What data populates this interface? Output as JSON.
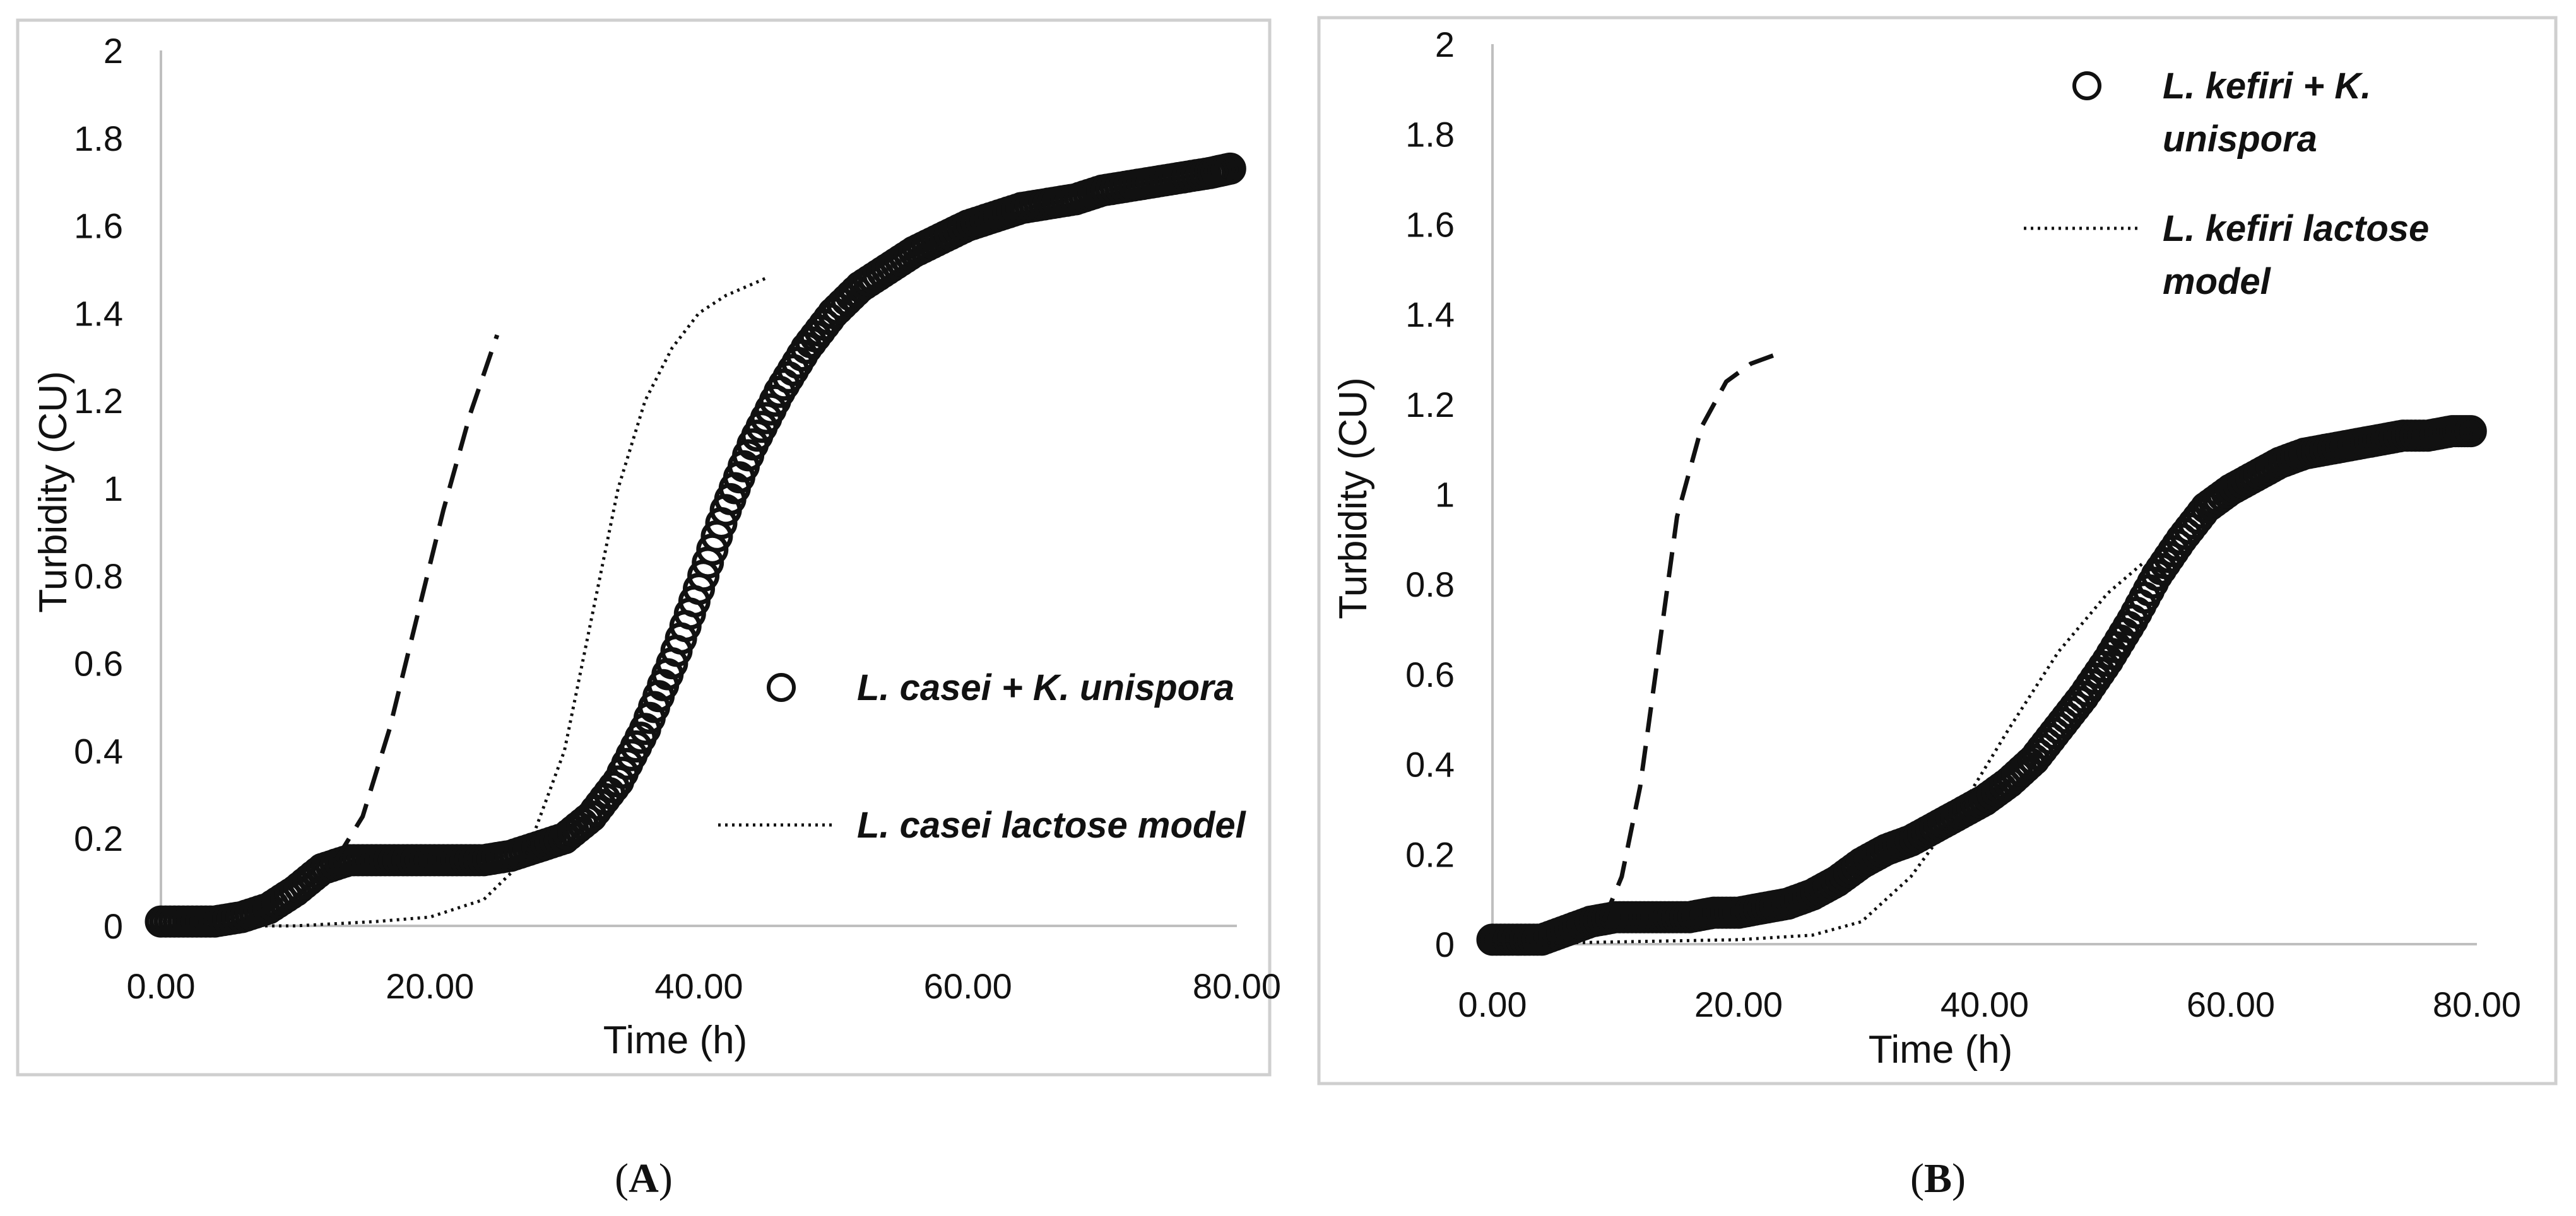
{
  "chart_data": [
    {
      "panel": "A",
      "caption_letter": "A",
      "type": "scatter",
      "xlabel": "Time (h)",
      "ylabel": "Turbidity (CU)",
      "xlim": [
        0,
        80
      ],
      "ylim": [
        0,
        2
      ],
      "x_ticks": [
        "0.00",
        "20.00",
        "40.00",
        "60.00",
        "80.00"
      ],
      "y_ticks": [
        "0",
        "0.2",
        "0.4",
        "0.6",
        "0.8",
        "1",
        "1.2",
        "1.4",
        "1.6",
        "1.8",
        "2"
      ],
      "legend": {
        "placement": "right-middle",
        "items": [
          {
            "label": "L. casei + K. unispora",
            "marker": "circle"
          },
          {
            "label": "L. casei lactose model",
            "marker": "dotted-line"
          }
        ]
      },
      "series": [
        {
          "name": "L. casei + K. unispora",
          "kind": "markers",
          "points": [
            [
              0,
              0.01
            ],
            [
              2,
              0.01
            ],
            [
              4,
              0.01
            ],
            [
              6,
              0.02
            ],
            [
              8,
              0.04
            ],
            [
              10,
              0.08
            ],
            [
              12,
              0.13
            ],
            [
              14,
              0.15
            ],
            [
              16,
              0.15
            ],
            [
              18,
              0.15
            ],
            [
              20,
              0.15
            ],
            [
              22,
              0.15
            ],
            [
              24,
              0.15
            ],
            [
              26,
              0.16
            ],
            [
              28,
              0.18
            ],
            [
              30,
              0.2
            ],
            [
              32,
              0.25
            ],
            [
              34,
              0.33
            ],
            [
              36,
              0.45
            ],
            [
              38,
              0.6
            ],
            [
              40,
              0.77
            ],
            [
              42,
              0.95
            ],
            [
              44,
              1.1
            ],
            [
              46,
              1.22
            ],
            [
              48,
              1.32
            ],
            [
              50,
              1.4
            ],
            [
              52,
              1.46
            ],
            [
              54,
              1.5
            ],
            [
              56,
              1.54
            ],
            [
              58,
              1.57
            ],
            [
              60,
              1.6
            ],
            [
              62,
              1.62
            ],
            [
              64,
              1.64
            ],
            [
              66,
              1.65
            ],
            [
              68,
              1.66
            ],
            [
              70,
              1.68
            ],
            [
              72,
              1.69
            ],
            [
              74,
              1.7
            ],
            [
              76,
              1.71
            ],
            [
              78,
              1.72
            ],
            [
              79.5,
              1.73
            ]
          ]
        },
        {
          "name": "L. casei lactose model",
          "kind": "dotted",
          "points": [
            [
              0,
              0
            ],
            [
              10,
              0
            ],
            [
              16,
              0.01
            ],
            [
              20,
              0.02
            ],
            [
              24,
              0.06
            ],
            [
              27,
              0.15
            ],
            [
              30,
              0.4
            ],
            [
              32,
              0.7
            ],
            [
              34,
              1.0
            ],
            [
              36,
              1.2
            ],
            [
              38,
              1.32
            ],
            [
              40,
              1.4
            ],
            [
              42,
              1.44
            ],
            [
              45,
              1.48
            ]
          ]
        },
        {
          "name": "dashed model (unlabeled)",
          "kind": "dashed",
          "points": [
            [
              13,
              0.15
            ],
            [
              15,
              0.25
            ],
            [
              17,
              0.45
            ],
            [
              19,
              0.7
            ],
            [
              21,
              0.95
            ],
            [
              23,
              1.17
            ],
            [
              25,
              1.35
            ]
          ]
        }
      ]
    },
    {
      "panel": "B",
      "caption_letter": "B",
      "type": "scatter",
      "xlabel": "Time (h)",
      "ylabel": "Turbidity (CU)",
      "xlim": [
        0,
        80
      ],
      "ylim": [
        0,
        2
      ],
      "x_ticks": [
        "0.00",
        "20.00",
        "40.00",
        "60.00",
        "80.00"
      ],
      "y_ticks": [
        "0",
        "0.2",
        "0.4",
        "0.6",
        "0.8",
        "1",
        "1.2",
        "1.4",
        "1.6",
        "1.8",
        "2"
      ],
      "legend": {
        "placement": "top-right",
        "items": [
          {
            "label_lines": [
              "L. kefiri + K.",
              "unispora"
            ],
            "marker": "circle"
          },
          {
            "label_lines": [
              "L. kefiri lactose",
              "model"
            ],
            "marker": "dotted-line"
          }
        ]
      },
      "series": [
        {
          "name": "L. kefiri + K. unispora",
          "kind": "markers",
          "points": [
            [
              0,
              0.01
            ],
            [
              2,
              0.01
            ],
            [
              4,
              0.01
            ],
            [
              6,
              0.03
            ],
            [
              8,
              0.05
            ],
            [
              10,
              0.06
            ],
            [
              12,
              0.06
            ],
            [
              14,
              0.06
            ],
            [
              16,
              0.06
            ],
            [
              18,
              0.07
            ],
            [
              20,
              0.07
            ],
            [
              22,
              0.08
            ],
            [
              24,
              0.09
            ],
            [
              26,
              0.11
            ],
            [
              28,
              0.14
            ],
            [
              30,
              0.18
            ],
            [
              32,
              0.21
            ],
            [
              34,
              0.23
            ],
            [
              36,
              0.26
            ],
            [
              38,
              0.29
            ],
            [
              40,
              0.32
            ],
            [
              42,
              0.36
            ],
            [
              44,
              0.41
            ],
            [
              46,
              0.48
            ],
            [
              48,
              0.55
            ],
            [
              50,
              0.63
            ],
            [
              52,
              0.72
            ],
            [
              54,
              0.82
            ],
            [
              56,
              0.9
            ],
            [
              58,
              0.97
            ],
            [
              60,
              1.01
            ],
            [
              62,
              1.04
            ],
            [
              64,
              1.07
            ],
            [
              66,
              1.09
            ],
            [
              68,
              1.1
            ],
            [
              70,
              1.11
            ],
            [
              72,
              1.12
            ],
            [
              74,
              1.13
            ],
            [
              76,
              1.13
            ],
            [
              78,
              1.14
            ],
            [
              79.5,
              1.14
            ]
          ]
        },
        {
          "name": "L. kefiri lactose model",
          "kind": "dotted",
          "points": [
            [
              0,
              0
            ],
            [
              20,
              0.01
            ],
            [
              26,
              0.02
            ],
            [
              30,
              0.05
            ],
            [
              34,
              0.15
            ],
            [
              38,
              0.3
            ],
            [
              42,
              0.48
            ],
            [
              46,
              0.65
            ],
            [
              50,
              0.78
            ],
            [
              53,
              0.85
            ]
          ]
        },
        {
          "name": "dashed model (unlabeled)",
          "kind": "dashed",
          "points": [
            [
              9,
              0.05
            ],
            [
              10.5,
              0.15
            ],
            [
              12,
              0.35
            ],
            [
              13.5,
              0.65
            ],
            [
              15,
              0.95
            ],
            [
              17,
              1.15
            ],
            [
              19,
              1.25
            ],
            [
              21,
              1.29
            ],
            [
              23,
              1.31
            ]
          ]
        }
      ]
    }
  ]
}
